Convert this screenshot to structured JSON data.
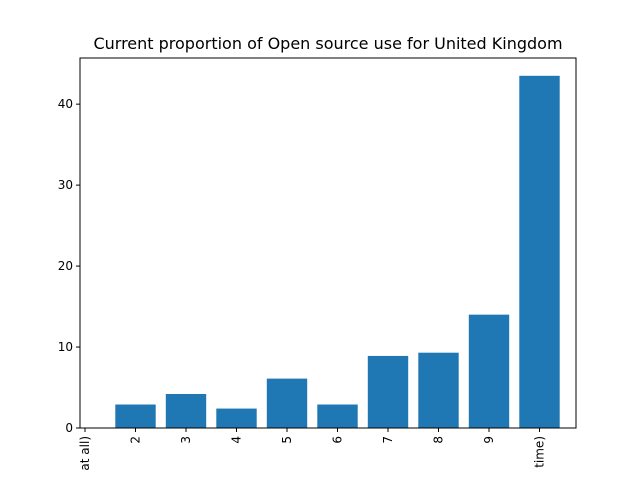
{
  "chart_data": {
    "type": "bar",
    "title": "Current proportion of Open source use for United Kingdom",
    "xlabel": "",
    "ylabel": "",
    "categories": [
      "at all)",
      "2",
      "3",
      "4",
      "5",
      "6",
      "7",
      "8",
      "9",
      "time)"
    ],
    "values": [
      0,
      2.9,
      4.2,
      2.4,
      6.1,
      2.9,
      8.9,
      9.3,
      14.0,
      43.5
    ],
    "ylim": [
      0,
      45.7
    ],
    "yticks": [
      0,
      10,
      20,
      30,
      40
    ],
    "grid": false,
    "bar_color": "#1f77b4"
  }
}
